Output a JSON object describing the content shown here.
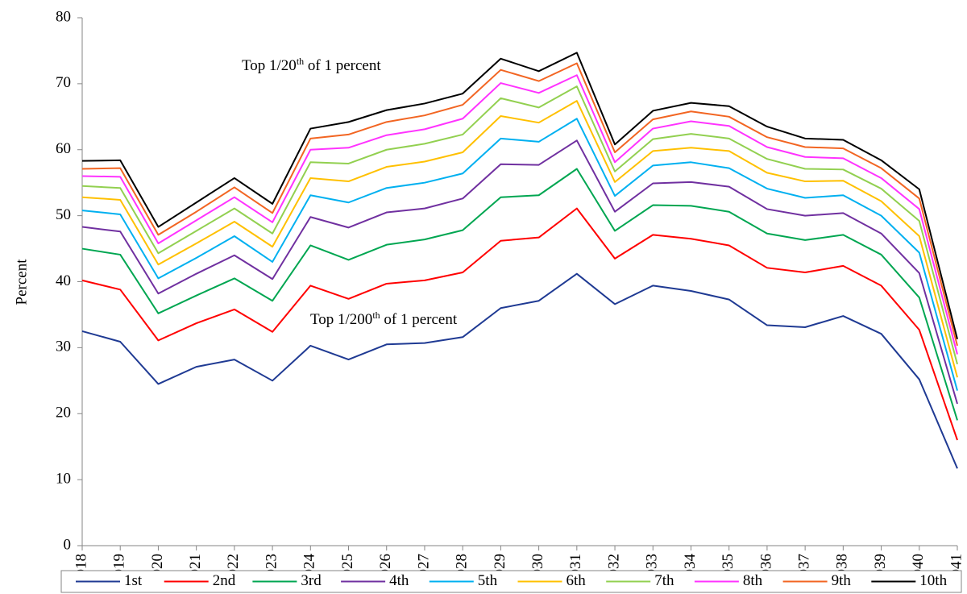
{
  "chart_data": {
    "type": "line",
    "y_label": "Percent",
    "annotations": [
      {
        "parts": [
          "Top 1/20",
          "th",
          " of 1 percent"
        ]
      },
      {
        "parts": [
          "Top 1/200",
          "th",
          " of 1 percent"
        ]
      }
    ],
    "categories": [
      "1918",
      "1919",
      "1920",
      "1921",
      "1922",
      "1923",
      "1924",
      "1925",
      "1926",
      "1927",
      "1928",
      "1929",
      "1930",
      "1931",
      "1932",
      "1933",
      "1934",
      "1935",
      "1936",
      "1937",
      "1938",
      "1939",
      "1940",
      "1941"
    ],
    "ylim": [
      0,
      80
    ],
    "yticks": [
      0,
      10,
      20,
      30,
      40,
      50,
      60,
      70,
      80
    ],
    "grid": false,
    "legend": "bottom",
    "series": [
      {
        "name": "1st",
        "color": "#1f3a93",
        "values": [
          32.5,
          30.9,
          24.5,
          27.1,
          28.2,
          25.0,
          30.3,
          28.2,
          30.5,
          30.7,
          31.6,
          36.0,
          37.1,
          41.2,
          36.6,
          39.4,
          38.6,
          37.3,
          33.4,
          33.1,
          34.8,
          32.1,
          25.2,
          11.7
        ]
      },
      {
        "name": "2nd",
        "color": "#ff0000",
        "values": [
          40.2,
          38.8,
          31.1,
          33.7,
          35.8,
          32.4,
          39.4,
          37.4,
          39.7,
          40.2,
          41.4,
          46.2,
          46.7,
          51.1,
          43.5,
          47.1,
          46.5,
          45.5,
          42.1,
          41.4,
          42.4,
          39.4,
          32.7,
          16.0
        ]
      },
      {
        "name": "3rd",
        "color": "#00a651",
        "values": [
          45.0,
          44.1,
          35.2,
          37.9,
          40.5,
          37.1,
          45.5,
          43.3,
          45.6,
          46.4,
          47.8,
          52.8,
          53.1,
          57.1,
          47.7,
          51.6,
          51.5,
          50.6,
          47.3,
          46.3,
          47.1,
          44.1,
          37.6,
          19.0
        ]
      },
      {
        "name": "4th",
        "color": "#7030a0",
        "values": [
          48.3,
          47.6,
          38.2,
          41.2,
          44.0,
          40.4,
          49.8,
          48.2,
          50.5,
          51.1,
          52.6,
          57.8,
          57.7,
          61.4,
          50.6,
          54.9,
          55.1,
          54.4,
          51.0,
          50.0,
          50.4,
          47.3,
          41.3,
          21.5
        ]
      },
      {
        "name": "5th",
        "color": "#00b0f0",
        "values": [
          50.8,
          50.2,
          40.5,
          43.6,
          46.9,
          43.0,
          53.1,
          52.0,
          54.2,
          55.0,
          56.4,
          61.7,
          61.2,
          64.7,
          53.0,
          57.6,
          58.1,
          57.2,
          54.1,
          52.7,
          53.1,
          50.0,
          44.4,
          23.5
        ]
      },
      {
        "name": "6th",
        "color": "#ffc000",
        "values": [
          52.8,
          52.4,
          42.6,
          45.8,
          49.1,
          45.3,
          55.7,
          55.2,
          57.4,
          58.2,
          59.6,
          65.1,
          64.1,
          67.4,
          55.1,
          59.8,
          60.3,
          59.8,
          56.5,
          55.2,
          55.3,
          52.2,
          46.9,
          25.5
        ]
      },
      {
        "name": "7th",
        "color": "#92d050",
        "values": [
          54.5,
          54.2,
          44.3,
          47.7,
          51.1,
          47.3,
          58.1,
          57.9,
          60.0,
          60.9,
          62.3,
          67.8,
          66.4,
          69.6,
          56.7,
          61.6,
          62.4,
          61.7,
          58.6,
          57.1,
          57.0,
          54.1,
          49.2,
          27.5
        ]
      },
      {
        "name": "8th",
        "color": "#ff33ff",
        "values": [
          56.0,
          55.9,
          45.8,
          49.3,
          52.8,
          49.0,
          60.0,
          60.3,
          62.2,
          63.1,
          64.7,
          70.1,
          68.6,
          71.3,
          58.1,
          63.2,
          64.3,
          63.6,
          60.4,
          58.9,
          58.7,
          55.7,
          51.0,
          29.0
        ]
      },
      {
        "name": "9th",
        "color": "#f26522",
        "values": [
          57.1,
          57.2,
          47.1,
          50.6,
          54.3,
          50.4,
          61.7,
          62.3,
          64.2,
          65.2,
          66.8,
          72.1,
          70.4,
          73.1,
          59.6,
          64.6,
          65.8,
          65.0,
          61.9,
          60.4,
          60.2,
          57.2,
          52.6,
          30.3
        ]
      },
      {
        "name": "10th",
        "color": "#000000",
        "values": [
          58.3,
          58.4,
          48.3,
          52.0,
          55.7,
          51.8,
          63.2,
          64.2,
          66.0,
          67.0,
          68.5,
          73.8,
          71.9,
          74.7,
          60.8,
          65.9,
          67.1,
          66.6,
          63.5,
          61.7,
          61.5,
          58.4,
          54.0,
          31.3
        ]
      }
    ]
  }
}
